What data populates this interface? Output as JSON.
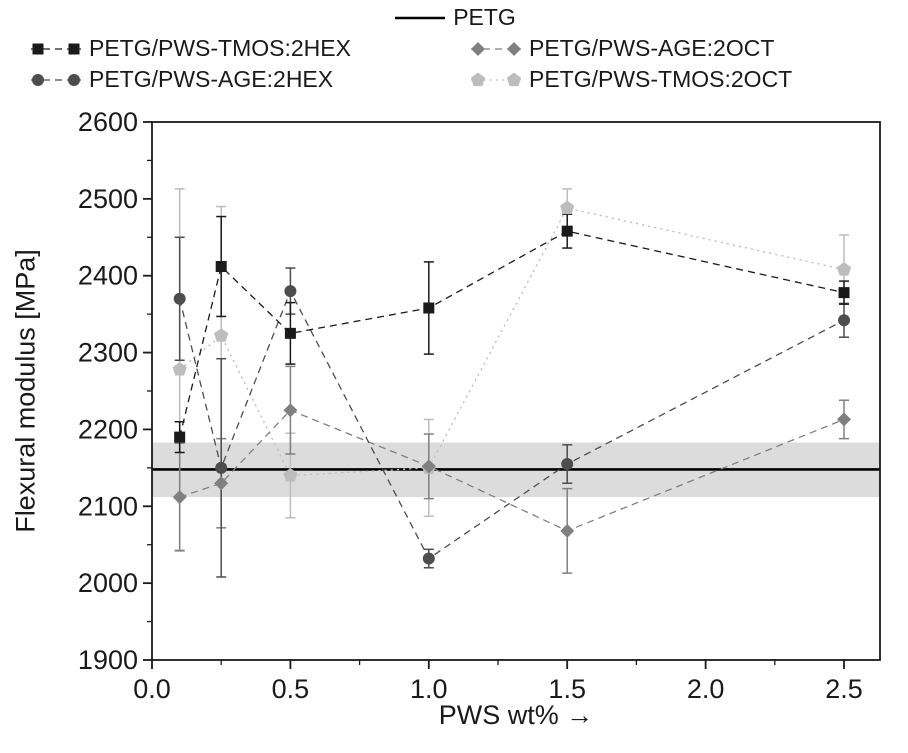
{
  "chart_data": {
    "type": "scatter",
    "title": "",
    "xlabel": "PWS wt%",
    "xlabel_arrow": "→",
    "ylabel": "Flexural modulus [MPa]",
    "xlim": [
      0,
      2.63
    ],
    "ylim": [
      1900,
      2600
    ],
    "x_ticks": [
      0.0,
      0.5,
      1.0,
      1.5,
      2.0,
      2.5
    ],
    "x_tick_labels": [
      "0.0",
      "0.5",
      "1.0",
      "1.5",
      "2.0",
      "2.5"
    ],
    "x_minor_ticks": [
      0.25,
      0.75,
      1.25,
      1.75,
      2.25
    ],
    "y_ticks": [
      1900,
      2000,
      2100,
      2200,
      2300,
      2400,
      2500,
      2600
    ],
    "y_minor_ticks": [
      1950,
      2050,
      2150,
      2250,
      2350,
      2450,
      2550
    ],
    "grid": false,
    "legend_position": "top",
    "x": [
      0.1,
      0.25,
      0.5,
      1.0,
      1.5,
      2.5
    ],
    "reference": {
      "name": "PETG",
      "value": 2148,
      "band": [
        2112,
        2183
      ],
      "line_color": "#000000",
      "band_color": "#dcdcdc"
    },
    "series": [
      {
        "name": "PETG/PWS-TMOS:2HEX",
        "marker": "square",
        "color": "#1a1a1a",
        "line_style": "dashed",
        "values": [
          2190,
          2412,
          2325,
          2358,
          2458,
          2378
        ],
        "errors": [
          20,
          65,
          40,
          60,
          22,
          15
        ]
      },
      {
        "name": "PETG/PWS-AGE:2HEX",
        "marker": "circle",
        "color": "#4d4d4d",
        "line_style": "dashed",
        "values": [
          2370,
          2150,
          2380,
          2032,
          2155,
          2342
        ],
        "errors": [
          80,
          142,
          30,
          12,
          25,
          22
        ]
      },
      {
        "name": "PETG/PWS-AGE:2OCT",
        "marker": "diamond",
        "color": "#808080",
        "line_style": "dashed",
        "values": [
          2112,
          2130,
          2225,
          2152,
          2068,
          2213
        ],
        "errors": [
          70,
          58,
          57,
          42,
          55,
          25
        ]
      },
      {
        "name": "PETG/PWS-TMOS:2OCT",
        "marker": "pentagon",
        "color": "#bdbdbd",
        "line_style": "dotted",
        "values": [
          2278,
          2322,
          2140,
          2150,
          2488,
          2408
        ],
        "errors": [
          235,
          168,
          55,
          63,
          25,
          45
        ]
      }
    ],
    "legend_rows": [
      [
        "PETG"
      ],
      [
        "PETG/PWS-TMOS:2HEX",
        "PETG/PWS-AGE:2OCT"
      ],
      [
        "PETG/PWS-AGE:2HEX",
        "PETG/PWS-TMOS:2OCT"
      ]
    ]
  }
}
